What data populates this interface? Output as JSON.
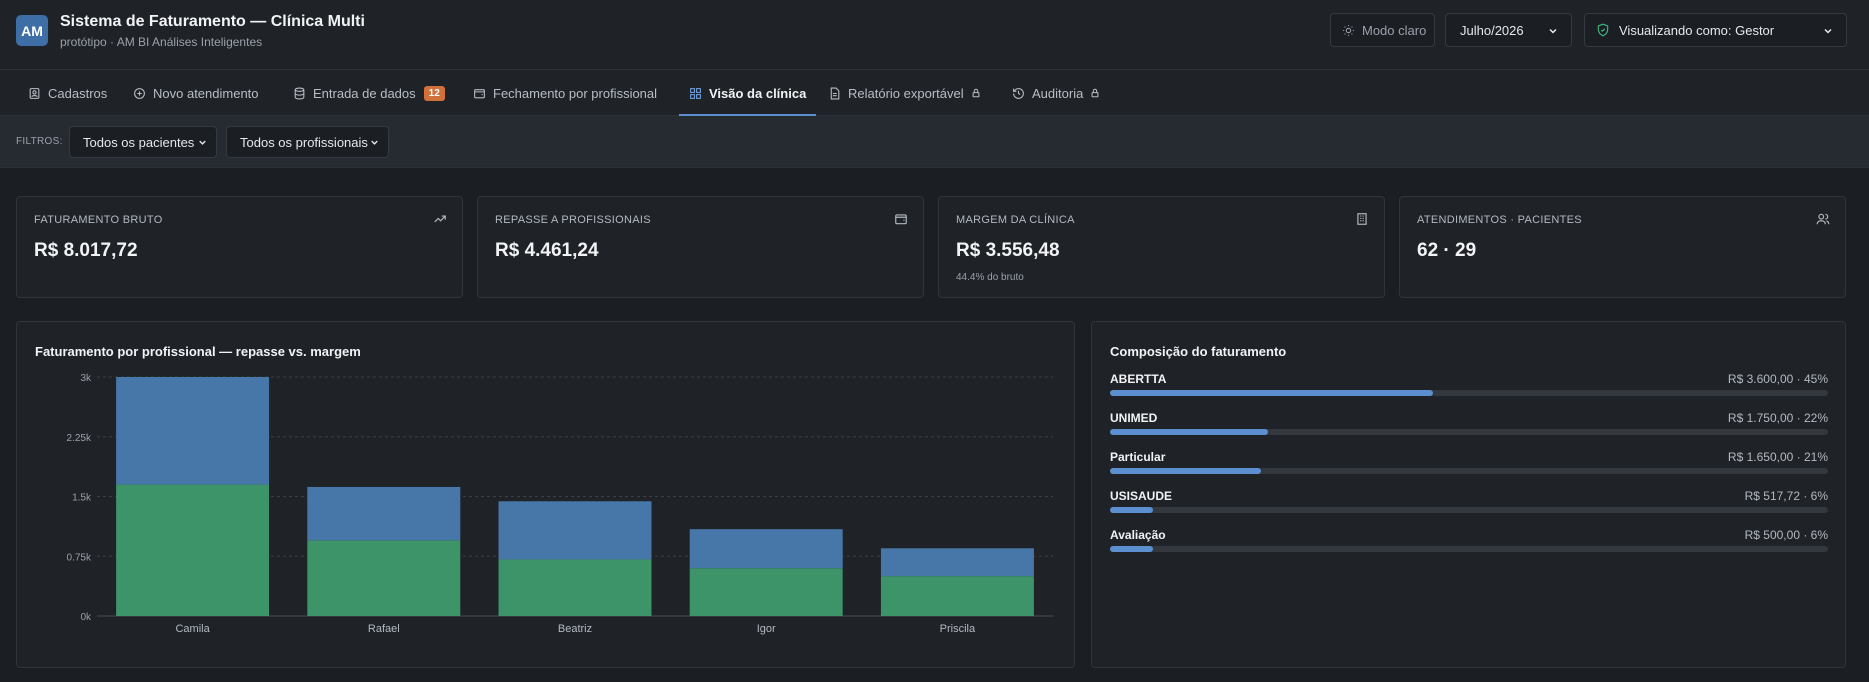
{
  "header": {
    "logo": "AM",
    "title": "Sistema de Faturamento — Clínica Multi",
    "subtitle": "protótipo · AM BI Análises Inteligentes",
    "theme_button": "Modo claro",
    "month": "Julho/2026",
    "role": "Visualizando como: Gestor"
  },
  "tabs": [
    {
      "label": "Cadastros",
      "icon": "id-card-icon"
    },
    {
      "label": "Novo atendimento",
      "icon": "plus-circle-icon"
    },
    {
      "label": "Entrada de dados",
      "icon": "database-icon",
      "badge": "12"
    },
    {
      "label": "Fechamento por profissional",
      "icon": "wallet-icon"
    },
    {
      "label": "Visão da clínica",
      "icon": "grid-icon",
      "active": true
    },
    {
      "label": "Relatório exportável",
      "icon": "file-icon",
      "locked": true
    },
    {
      "label": "Auditoria",
      "icon": "history-icon",
      "locked": true
    }
  ],
  "filters": {
    "label": "FILTROS:",
    "patients": "Todos os pacientes",
    "professionals": "Todos os profissionais"
  },
  "kpis": [
    {
      "label": "FATURAMENTO BRUTO",
      "value": "R$ 8.017,72",
      "icon": "trend-up-icon"
    },
    {
      "label": "REPASSE A PROFISSIONAIS",
      "value": "R$ 4.461,24",
      "icon": "wallet-icon"
    },
    {
      "label": "MARGEM DA CLÍNICA",
      "value": "R$ 3.556,48",
      "sub": "44.4% do bruto",
      "icon": "building-icon"
    },
    {
      "label": "ATENDIMENTOS · PACIENTES",
      "value": "62 · 29",
      "icon": "users-icon"
    }
  ],
  "chart_panel": {
    "title": "Faturamento por profissional — repasse vs. margem"
  },
  "chart_data": {
    "type": "bar",
    "stacked": true,
    "categories": [
      "Camila",
      "Rafael",
      "Beatriz",
      "Igor",
      "Priscila"
    ],
    "series": [
      {
        "values": [
          1650,
          950,
          710,
          600,
          500
        ],
        "color": "#3d9469"
      },
      {
        "values": [
          1350,
          670,
          730,
          490,
          350
        ],
        "color": "#4777a8"
      }
    ],
    "yticks": [
      "0k",
      "0.75k",
      "1.5k",
      "2.25k",
      "3k"
    ],
    "ylim": [
      0,
      3000
    ],
    "grid": true
  },
  "composition": {
    "title": "Composição do faturamento",
    "items": [
      {
        "label": "ABERTTA",
        "value": "R$ 3.600,00 · 45%",
        "pct": 45
      },
      {
        "label": "UNIMED",
        "value": "R$ 1.750,00 · 22%",
        "pct": 22
      },
      {
        "label": "Particular",
        "value": "R$ 1.650,00 · 21%",
        "pct": 21
      },
      {
        "label": "USISAUDE",
        "value": "R$ 517,72 · 6%",
        "pct": 6
      },
      {
        "label": "Avaliação",
        "value": "R$ 500,00 · 6%",
        "pct": 6
      }
    ]
  }
}
